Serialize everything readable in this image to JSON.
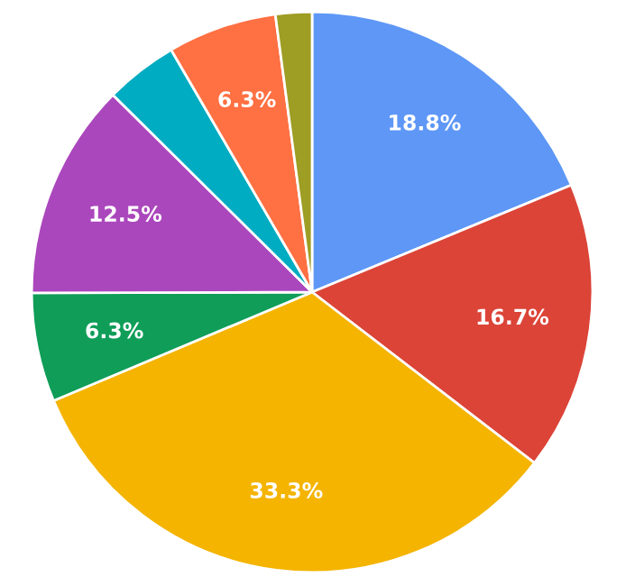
{
  "chart_data": {
    "type": "pie",
    "categories": [
      null,
      null,
      null,
      null,
      null,
      null,
      null,
      null
    ],
    "values": [
      18.8,
      16.7,
      33.3,
      6.3,
      12.5,
      4.2,
      6.3,
      2.1
    ],
    "value_labels": [
      "18.8%",
      "16.7%",
      "33.3%",
      "6.3%",
      "12.5%",
      null,
      "6.3%",
      null
    ],
    "colors": [
      "#5e97f6",
      "#db4437",
      "#f4b400",
      "#0f9d58",
      "#ab47bc",
      "#00acc1",
      "#ff7043",
      "#9e9d24"
    ]
  }
}
